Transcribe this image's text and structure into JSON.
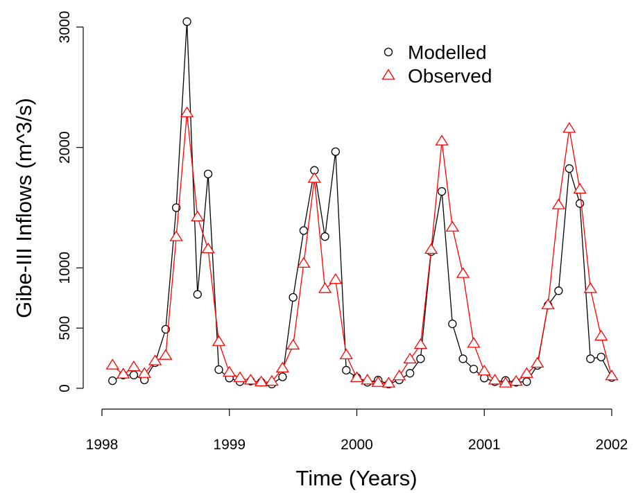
{
  "chart_data": {
    "type": "line",
    "x_label": "Time (Years)",
    "y_label": "Gibe-III Inflows (m^3/s)",
    "x": [
      1998.083,
      1998.167,
      1998.25,
      1998.333,
      1998.417,
      1998.5,
      1998.583,
      1998.667,
      1998.75,
      1998.833,
      1998.917,
      1999.0,
      1999.083,
      1999.167,
      1999.25,
      1999.333,
      1999.417,
      1999.5,
      1999.583,
      1999.667,
      1999.75,
      1999.833,
      1999.917,
      2000.0,
      2000.083,
      2000.167,
      2000.25,
      2000.333,
      2000.417,
      2000.5,
      2000.583,
      2000.667,
      2000.75,
      2000.833,
      2000.917,
      2001.0,
      2001.083,
      2001.167,
      2001.25,
      2001.333,
      2001.417,
      2001.5,
      2001.583,
      2001.667,
      2001.75,
      2001.833,
      2001.917,
      2002.0
    ],
    "series": [
      {
        "name": "Modelled",
        "color": "#000000",
        "marker": "circle",
        "values": [
          63,
          110,
          110,
          70,
          213,
          490,
          1500,
          3045,
          780,
          1780,
          155,
          85,
          55,
          60,
          50,
          35,
          95,
          755,
          1310,
          1810,
          1260,
          1965,
          150,
          90,
          50,
          68,
          35,
          70,
          125,
          245,
          1135,
          1635,
          535,
          245,
          160,
          85,
          55,
          65,
          50,
          55,
          190,
          690,
          810,
          1825,
          1535,
          245,
          260,
          90
        ]
      },
      {
        "name": "Observed",
        "color": "#ff0000",
        "marker": "triangle",
        "values": [
          190,
          115,
          175,
          120,
          225,
          270,
          1255,
          2285,
          1420,
          1155,
          385,
          130,
          85,
          65,
          50,
          55,
          165,
          355,
          1035,
          1740,
          825,
          900,
          275,
          85,
          65,
          45,
          40,
          100,
          240,
          360,
          1150,
          2050,
          1335,
          950,
          370,
          140,
          65,
          40,
          55,
          120,
          205,
          690,
          1520,
          2155,
          1650,
          825,
          430,
          100
        ]
      }
    ],
    "xlim": [
      1998,
      2002
    ],
    "xticks": [
      1998,
      1999,
      2000,
      2001,
      2002
    ],
    "ylim": [
      0,
      3000
    ],
    "yticks": [
      0,
      500,
      1000,
      2000,
      3000
    ],
    "legend": "top-right"
  }
}
